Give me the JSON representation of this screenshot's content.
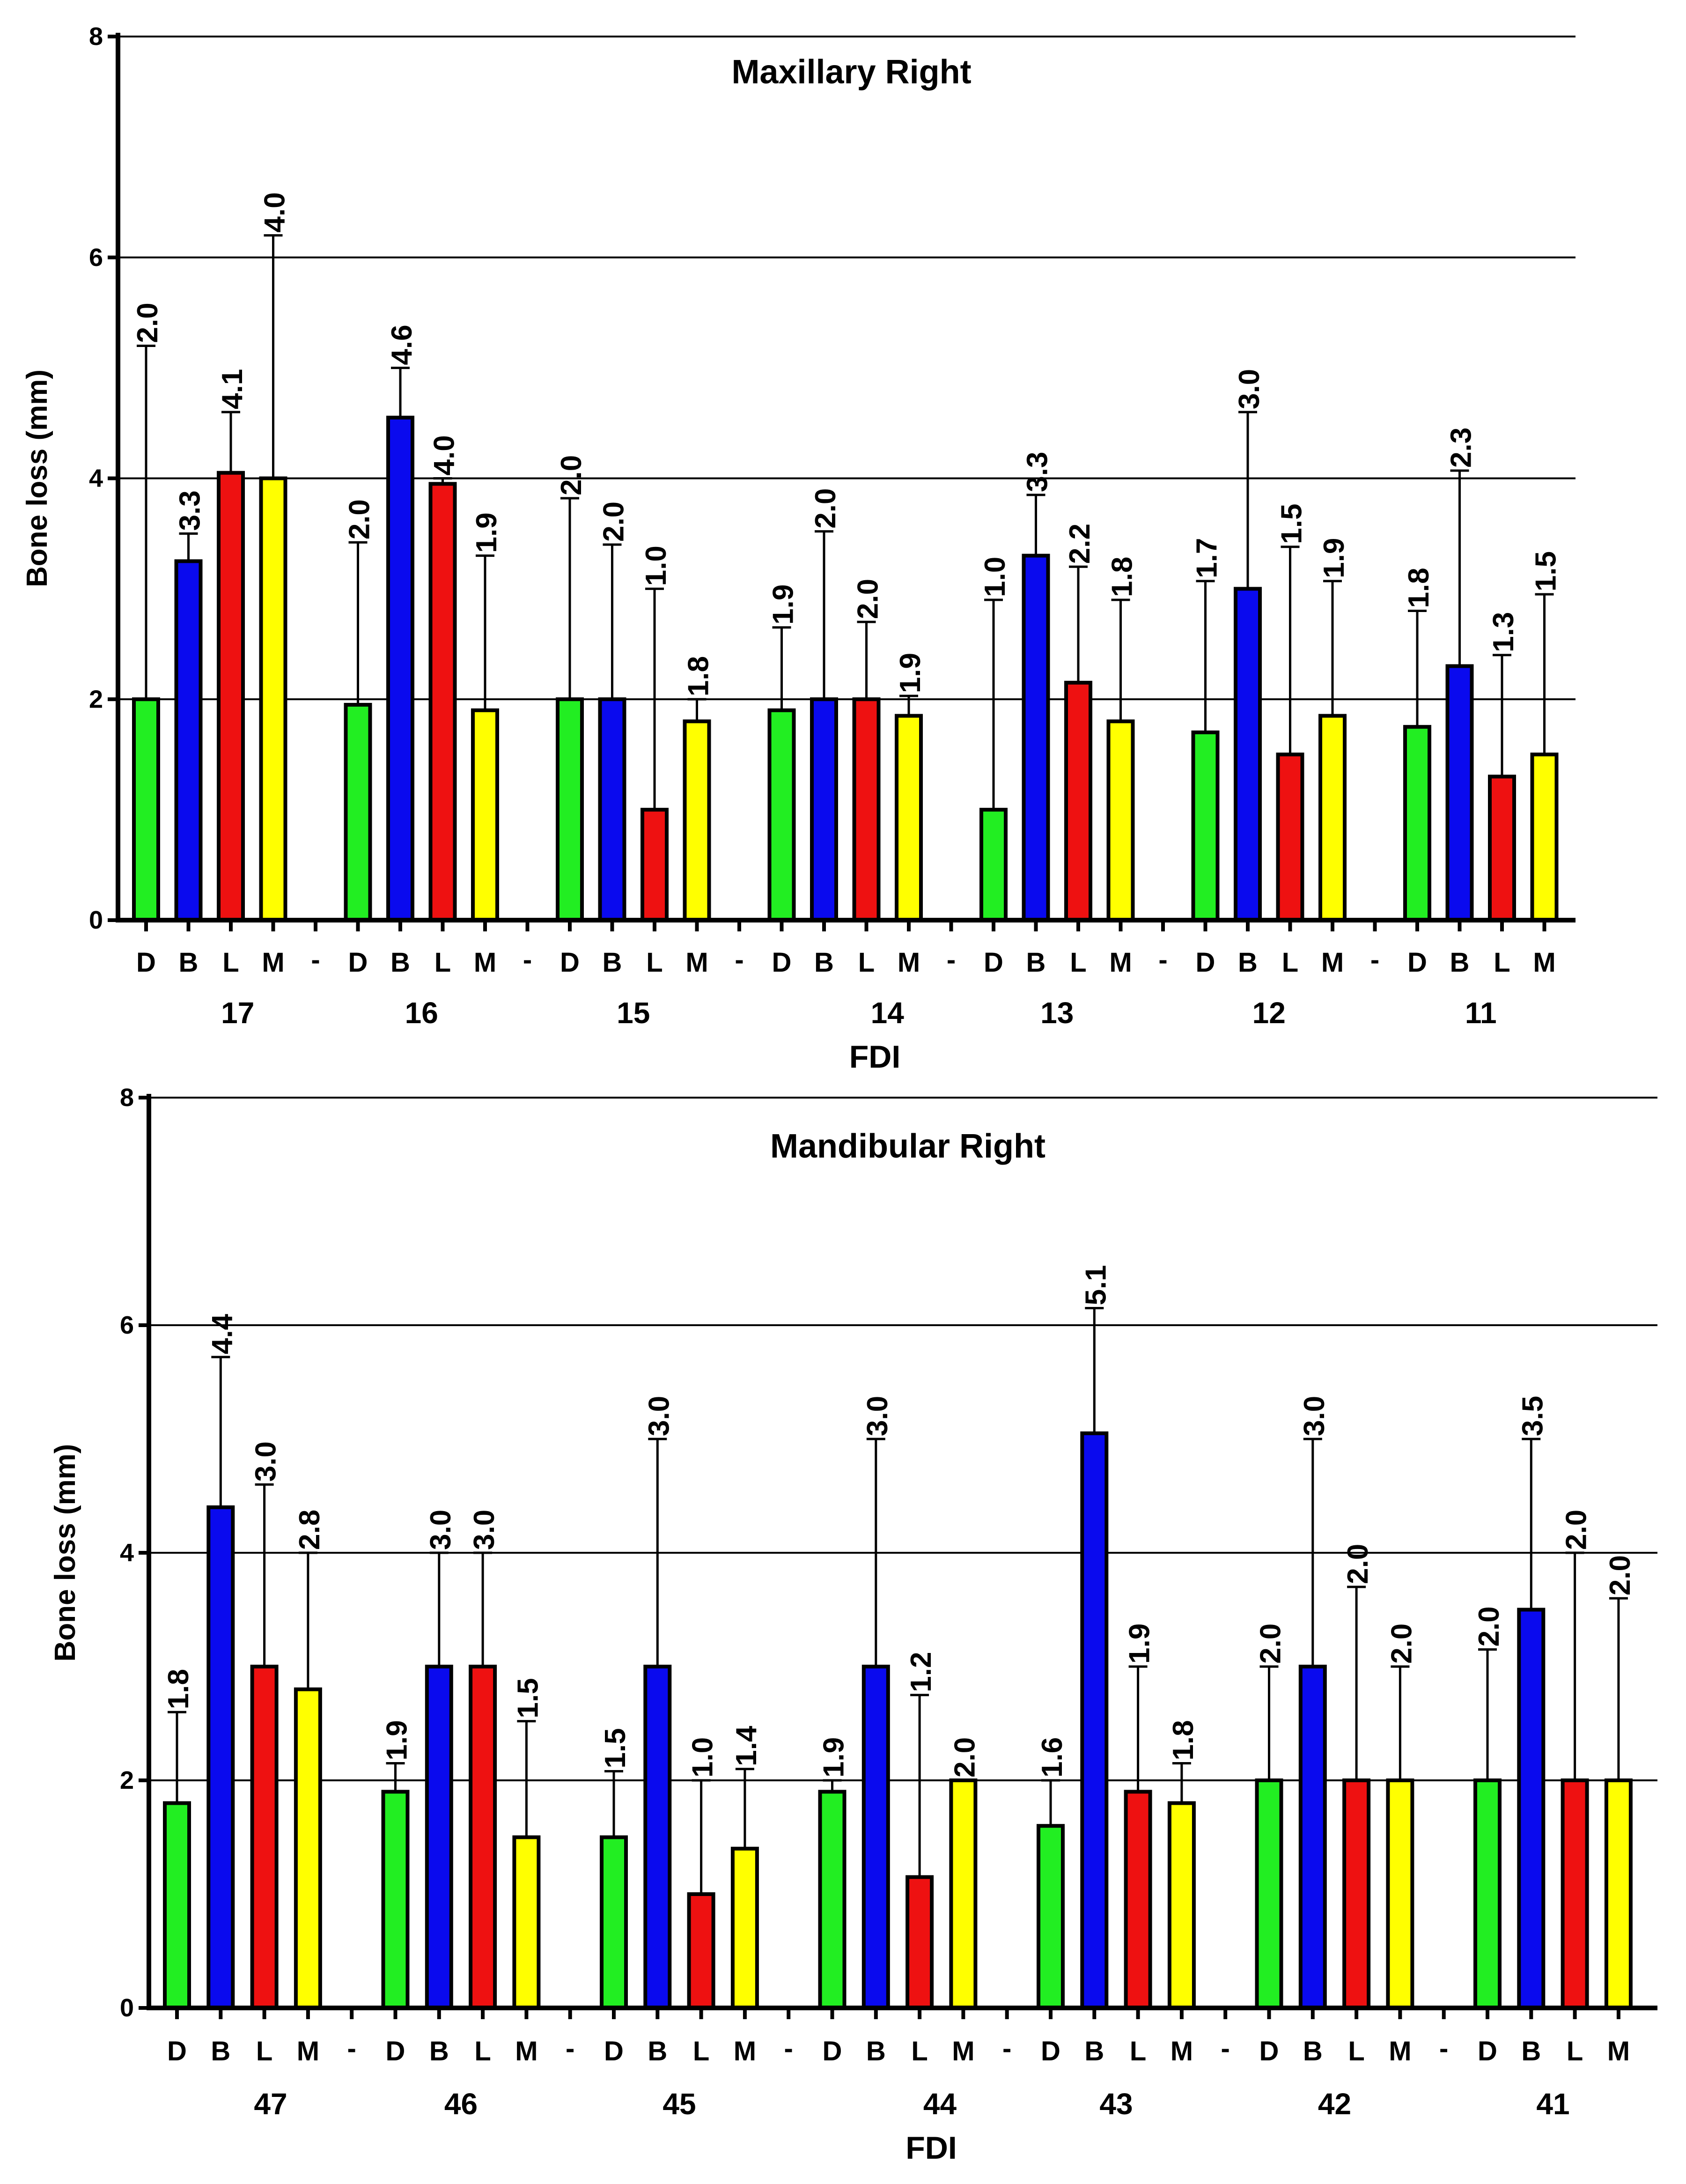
{
  "chart_data": [
    {
      "type": "bar",
      "title": "Maxillary Right",
      "xlabel": "FDI",
      "ylabel": "Bone loss (mm)",
      "ylim": [
        0,
        8
      ],
      "yticks": [
        "0",
        "2",
        "4",
        "6",
        "8"
      ],
      "grid": "horizontal",
      "surfaces": [
        "D",
        "B",
        "L",
        "M"
      ],
      "separator_label": "-",
      "colors": {
        "D": "#22ee22",
        "B": "#0a0aee",
        "L": "#ee1111",
        "M": "#ffff00"
      },
      "groups": [
        {
          "tooth": "17",
          "values": [
            2.0,
            3.25,
            4.05,
            4.0
          ],
          "errors": [
            5.2,
            3.5,
            4.6,
            6.2
          ],
          "labels": [
            "2.0",
            "3.3",
            "4.1",
            "4.0"
          ]
        },
        {
          "tooth": "16",
          "values": [
            1.95,
            4.55,
            3.95,
            1.9
          ],
          "errors": [
            3.42,
            5.0,
            4.0,
            3.3
          ],
          "labels": [
            "2.0",
            "4.6",
            "4.0",
            "1.9"
          ]
        },
        {
          "tooth": "15",
          "values": [
            2.0,
            2.0,
            1.0,
            1.8
          ],
          "errors": [
            3.82,
            3.4,
            3.0,
            2.0
          ],
          "labels": [
            "2.0",
            "2.0",
            "1.0",
            "1.8"
          ]
        },
        {
          "tooth": "14",
          "values": [
            1.9,
            2.0,
            2.0,
            1.85
          ],
          "errors": [
            2.65,
            3.52,
            2.7,
            2.03
          ],
          "labels": [
            "1.9",
            "2.0",
            "2.0",
            "1.9"
          ]
        },
        {
          "tooth": "13",
          "values": [
            1.0,
            3.3,
            2.15,
            1.8
          ],
          "errors": [
            2.9,
            3.85,
            3.2,
            2.9
          ],
          "labels": [
            "1.0",
            "3.3",
            "2.2",
            "1.8"
          ]
        },
        {
          "tooth": "12",
          "values": [
            1.7,
            3.0,
            1.5,
            1.85
          ],
          "errors": [
            3.07,
            4.6,
            3.38,
            3.07
          ],
          "labels": [
            "1.7",
            "3.0",
            "1.5",
            "1.9"
          ]
        },
        {
          "tooth": "11",
          "values": [
            1.75,
            2.3,
            1.3,
            1.5
          ],
          "errors": [
            2.8,
            4.07,
            2.4,
            2.95
          ],
          "labels": [
            "1.8",
            "2.3",
            "1.3",
            "1.5"
          ]
        }
      ]
    },
    {
      "type": "bar",
      "title": "Mandibular Right",
      "xlabel": "FDI",
      "ylabel": "Bone loss (mm)",
      "ylim": [
        0,
        8
      ],
      "yticks": [
        "0",
        "2",
        "4",
        "6",
        "8"
      ],
      "grid": "horizontal",
      "surfaces": [
        "D",
        "B",
        "L",
        "M"
      ],
      "separator_label": "-",
      "colors": {
        "D": "#22ee22",
        "B": "#0a0aee",
        "L": "#ee1111",
        "M": "#ffff00"
      },
      "groups": [
        {
          "tooth": "47",
          "values": [
            1.8,
            4.4,
            3.0,
            2.8
          ],
          "errors": [
            2.6,
            5.72,
            4.6,
            4.0
          ],
          "labels": [
            "1.8",
            "4.4",
            "3.0",
            "2.8"
          ]
        },
        {
          "tooth": "46",
          "values": [
            1.9,
            3.0,
            3.0,
            1.5
          ],
          "errors": [
            2.15,
            4.0,
            4.0,
            2.52
          ],
          "labels": [
            "1.9",
            "3.0",
            "3.0",
            "1.5"
          ]
        },
        {
          "tooth": "45",
          "values": [
            1.5,
            3.0,
            1.0,
            1.4
          ],
          "errors": [
            2.08,
            5.0,
            2.0,
            2.1
          ],
          "labels": [
            "1.5",
            "3.0",
            "1.0",
            "1.4"
          ]
        },
        {
          "tooth": "44",
          "values": [
            1.9,
            3.0,
            1.15,
            2.0
          ],
          "errors": [
            2.0,
            5.0,
            2.75,
            2.0
          ],
          "labels": [
            "1.9",
            "3.0",
            "1.2",
            "2.0"
          ]
        },
        {
          "tooth": "43",
          "values": [
            1.6,
            5.05,
            1.9,
            1.8
          ],
          "errors": [
            2.0,
            6.15,
            3.0,
            2.15
          ],
          "labels": [
            "1.6",
            "5.1",
            "1.9",
            "1.8"
          ]
        },
        {
          "tooth": "42",
          "values": [
            2.0,
            3.0,
            2.0,
            2.0
          ],
          "errors": [
            3.0,
            5.0,
            3.7,
            3.0
          ],
          "labels": [
            "2.0",
            "3.0",
            "2.0",
            "2.0"
          ]
        },
        {
          "tooth": "41",
          "values": [
            2.0,
            3.5,
            2.0,
            2.0
          ],
          "errors": [
            3.15,
            5.0,
            4.0,
            3.6
          ],
          "labels": [
            "2.0",
            "3.5",
            "2.0",
            "2.0"
          ]
        }
      ]
    }
  ]
}
